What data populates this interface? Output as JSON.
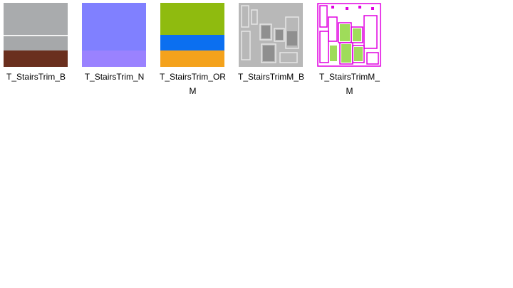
{
  "files": [
    {
      "name": "T_StairsTrim_B"
    },
    {
      "name": "T_StairsTrim_N"
    },
    {
      "name": "T_StairsTrim_ORM"
    },
    {
      "name": "T_StairsTrimM_B"
    },
    {
      "name": "T_StairsTrimM_M"
    }
  ]
}
